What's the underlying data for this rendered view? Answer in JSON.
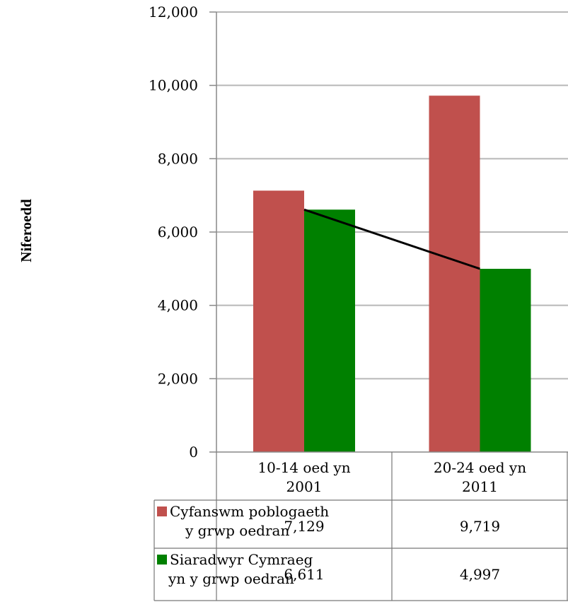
{
  "chart_data": {
    "type": "bar",
    "ylabel": "Niferoedd",
    "ylim": [
      0,
      12000
    ],
    "yticks": [
      "0",
      "2,000",
      "4,000",
      "6,000",
      "8,000",
      "10,000",
      "12,000"
    ],
    "ytick_values": [
      0,
      2000,
      4000,
      6000,
      8000,
      10000,
      12000
    ],
    "grid": true,
    "categories": [
      [
        "10-14 oed yn",
        "2001"
      ],
      [
        "20-24 oed  yn",
        "2011"
      ]
    ],
    "series": [
      {
        "name": [
          "Cyfanswm poblogaeth",
          "y grwp oedran"
        ],
        "values": [
          7129,
          9719
        ],
        "value_labels": [
          "7,129",
          "9,719"
        ],
        "color": "#c0504d"
      },
      {
        "name": [
          "Siaradwyr Cymraeg",
          "yn y grwp oedran"
        ],
        "values": [
          6611,
          4997
        ],
        "value_labels": [
          "6,611",
          "4,997"
        ],
        "color": "#008000"
      }
    ],
    "trend_line": {
      "series": 1,
      "color": "#000000"
    },
    "legend": "data-table-below"
  }
}
